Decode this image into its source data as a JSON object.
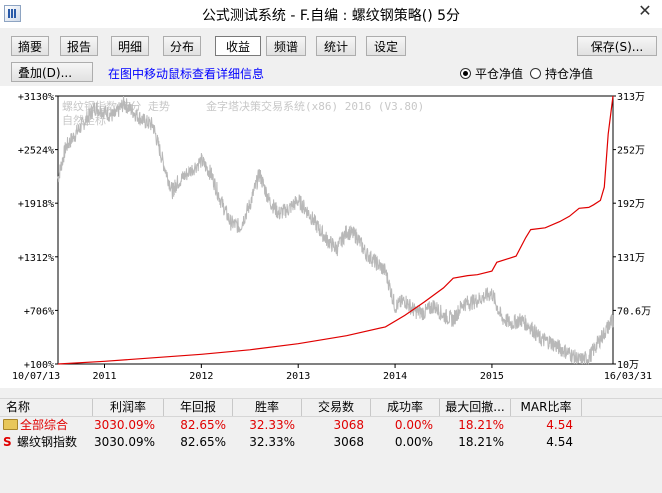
{
  "window": {
    "title": "公式测试系统 - F.自编 : 螺纹钢策略() 5分",
    "close_glyph": "✕"
  },
  "toolbar": {
    "tabs": [
      {
        "label": "摘要"
      },
      {
        "label": "报告"
      },
      {
        "label": "明细"
      },
      {
        "label": "分布"
      },
      {
        "label": "收益"
      },
      {
        "label": "频谱"
      },
      {
        "label": "统计"
      },
      {
        "label": "设定"
      }
    ],
    "active_tab": "收益",
    "save_label": "保存(S)..."
  },
  "controls": {
    "overlay_label": "叠加(D)...",
    "hint": "在图中移动鼠标查看详细信息",
    "radio_flat": "平仓净值",
    "radio_hold": "持仓净值",
    "selected": "平仓净值"
  },
  "chart_data": {
    "type": "line",
    "watermark": [
      "螺纹钢指数 5分 走势",
      "金字塔决策交易系统(x86) 2016 (V3.80)",
      "自然坐标"
    ],
    "x_start_label": "10/07/13",
    "x_end_label": "16/03/31",
    "x_ticks": [
      "2011",
      "2012",
      "2013",
      "2014",
      "2015"
    ],
    "y_left_ticks": [
      "+3130%",
      "+2524%",
      "+1918%",
      "+1312%",
      "+706%",
      "+100%"
    ],
    "y_right_ticks": [
      "313万",
      "252万",
      "192万",
      "131万",
      "70.6万",
      "10万"
    ],
    "colors": {
      "equity": "#e00000",
      "price": "#b8b8b8",
      "axis": "#000000"
    },
    "series": [
      {
        "comment": "equity curve, y in left-axis percent",
        "x": [
          2010.52,
          2011.0,
          2011.5,
          2012.0,
          2012.5,
          2013.0,
          2013.5,
          2013.9,
          2014.1,
          2014.3,
          2014.5,
          2014.6,
          2014.75,
          2014.85,
          2015.0,
          2015.05,
          2015.25,
          2015.35,
          2015.4,
          2015.55,
          2015.7,
          2015.8,
          2015.9,
          2016.0,
          2016.05,
          2016.12,
          2016.16,
          2016.2,
          2016.25
        ],
        "y": [
          100,
          130,
          170,
          210,
          260,
          330,
          420,
          520,
          650,
          800,
          960,
          1070,
          1100,
          1110,
          1150,
          1250,
          1320,
          1530,
          1620,
          1640,
          1710,
          1770,
          1860,
          1870,
          1900,
          1950,
          2100,
          2700,
          3130
        ]
      },
      {
        "comment": "price series (bar close), y in left-axis percent scale",
        "x": [
          2010.52,
          2010.6,
          2010.7,
          2010.8,
          2010.9,
          2011.0,
          2011.1,
          2011.2,
          2011.3,
          2011.4,
          2011.5,
          2011.6,
          2011.7,
          2011.75,
          2011.85,
          2012.0,
          2012.1,
          2012.2,
          2012.3,
          2012.4,
          2012.5,
          2012.6,
          2012.7,
          2012.8,
          2012.9,
          2013.0,
          2013.1,
          2013.2,
          2013.3,
          2013.4,
          2013.5,
          2013.6,
          2013.7,
          2013.8,
          2013.9,
          2014.0,
          2014.1,
          2014.2,
          2014.3,
          2014.4,
          2014.5,
          2014.6,
          2014.7,
          2014.8,
          2014.9,
          2015.0,
          2015.1,
          2015.2,
          2015.3,
          2015.4,
          2015.5,
          2015.6,
          2015.7,
          2015.8,
          2015.9,
          2016.0,
          2016.1,
          2016.2,
          2016.25
        ],
        "y": [
          2200,
          2550,
          2700,
          2850,
          3000,
          2950,
          2900,
          3050,
          2950,
          2850,
          2800,
          2400,
          2050,
          2150,
          2250,
          2400,
          2250,
          1950,
          1700,
          1650,
          1900,
          2250,
          1950,
          1800,
          1850,
          1950,
          1820,
          1650,
          1500,
          1400,
          1600,
          1550,
          1350,
          1250,
          1150,
          750,
          820,
          700,
          680,
          760,
          650,
          600,
          780,
          800,
          850,
          900,
          620,
          560,
          600,
          520,
          380,
          350,
          280,
          220,
          140,
          170,
          350,
          520,
          600
        ]
      }
    ]
  },
  "table": {
    "headers": [
      "名称",
      "利润率",
      "年回报",
      "胜率",
      "交易数",
      "成功率",
      "最大回撤...",
      "MAR比率"
    ],
    "rows": [
      {
        "icon": "folder-icon",
        "name": "全部综合",
        "values": [
          "3030.09%",
          "82.65%",
          "32.33%",
          "3068",
          "0.00%",
          "18.21%",
          "4.54"
        ],
        "highlight": true
      },
      {
        "icon": "s-icon",
        "icon_text": "S",
        "name": "螺纹钢指数",
        "values": [
          "3030.09%",
          "82.65%",
          "32.33%",
          "3068",
          "0.00%",
          "18.21%",
          "4.54"
        ],
        "highlight": false
      }
    ]
  }
}
